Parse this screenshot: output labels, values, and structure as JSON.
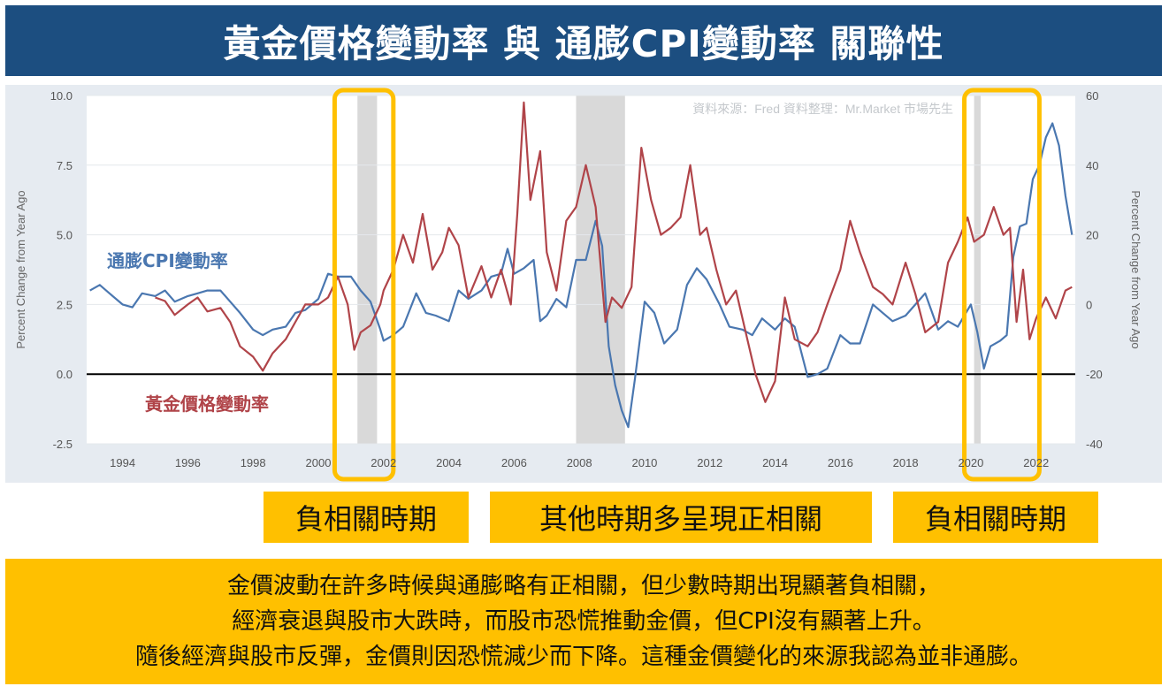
{
  "title": "黃金價格變動率 與 通膨CPI變動率 關聯性",
  "chart_data": {
    "type": "line",
    "source_note": "資料來源：Fred 資料整理：Mr.Market 市場先生",
    "ylabel_left": "Percent Change from Year Ago",
    "ylabel_right": "Percent Change from Year Ago",
    "xlim": [
      1992.9,
      2023.2
    ],
    "ylim_left": [
      -2.5,
      10.0
    ],
    "ylim_right": [
      -40,
      60
    ],
    "x_ticks": [
      "1994",
      "1996",
      "1998",
      "2000",
      "2002",
      "2004",
      "2006",
      "2008",
      "2010",
      "2012",
      "2014",
      "2016",
      "2018",
      "2020",
      "2022"
    ],
    "y_ticks_left": [
      "10.0",
      "7.5",
      "5.0",
      "2.5",
      "0.0",
      "-2.5"
    ],
    "y_ticks_right": [
      "60",
      "40",
      "20",
      "0",
      "-20",
      "-40"
    ],
    "recessions": [
      [
        2001.2,
        2001.8
      ],
      [
        2007.9,
        2009.4
      ],
      [
        2020.1,
        2020.3
      ]
    ],
    "highlight_boxes": [
      [
        2000.5,
        2002.3
      ],
      [
        2019.8,
        2022.1
      ]
    ],
    "series": [
      {
        "name": "通膨CPI變動率",
        "axis": "left",
        "color": "#4a77b0",
        "x": [
          1993.0,
          1993.3,
          1993.6,
          1994.0,
          1994.3,
          1994.6,
          1995.0,
          1995.3,
          1995.6,
          1996.0,
          1996.3,
          1996.6,
          1997.0,
          1997.3,
          1997.6,
          1998.0,
          1998.3,
          1998.6,
          1999.0,
          1999.3,
          1999.6,
          2000.0,
          2000.3,
          2000.6,
          2001.0,
          2001.3,
          2001.6,
          2001.9,
          2002.0,
          2002.3,
          2002.6,
          2003.0,
          2003.3,
          2003.6,
          2004.0,
          2004.3,
          2004.6,
          2005.0,
          2005.3,
          2005.6,
          2005.8,
          2006.0,
          2006.3,
          2006.6,
          2006.8,
          2007.0,
          2007.3,
          2007.6,
          2007.9,
          2008.2,
          2008.5,
          2008.7,
          2008.9,
          2009.1,
          2009.3,
          2009.5,
          2009.7,
          2010.0,
          2010.3,
          2010.6,
          2011.0,
          2011.3,
          2011.6,
          2011.9,
          2012.3,
          2012.6,
          2013.0,
          2013.3,
          2013.6,
          2014.0,
          2014.3,
          2014.6,
          2015.0,
          2015.3,
          2015.6,
          2016.0,
          2016.3,
          2016.6,
          2017.0,
          2017.3,
          2017.6,
          2018.0,
          2018.3,
          2018.6,
          2019.0,
          2019.3,
          2019.6,
          2020.0,
          2020.2,
          2020.4,
          2020.6,
          2020.9,
          2021.1,
          2021.3,
          2021.5,
          2021.7,
          2021.9,
          2022.1,
          2022.3,
          2022.5,
          2022.7,
          2022.9,
          2023.1
        ],
        "values": [
          3.0,
          3.2,
          2.9,
          2.5,
          2.4,
          2.9,
          2.8,
          3.0,
          2.6,
          2.8,
          2.9,
          3.0,
          3.0,
          2.6,
          2.2,
          1.6,
          1.4,
          1.6,
          1.7,
          2.2,
          2.3,
          2.7,
          3.6,
          3.5,
          3.5,
          3.0,
          2.6,
          1.6,
          1.2,
          1.4,
          1.7,
          2.9,
          2.2,
          2.1,
          1.9,
          3.0,
          2.7,
          3.0,
          3.5,
          3.6,
          4.5,
          3.6,
          3.8,
          4.1,
          1.9,
          2.1,
          2.7,
          2.4,
          4.1,
          4.1,
          5.5,
          4.6,
          1.0,
          -0.4,
          -1.3,
          -1.9,
          -0.2,
          2.6,
          2.2,
          1.1,
          1.6,
          3.2,
          3.8,
          3.4,
          2.5,
          1.7,
          1.6,
          1.4,
          2.0,
          1.6,
          2.0,
          1.7,
          -0.1,
          0.0,
          0.2,
          1.4,
          1.1,
          1.1,
          2.5,
          2.2,
          1.9,
          2.1,
          2.5,
          2.9,
          1.6,
          1.9,
          1.7,
          2.5,
          1.5,
          0.2,
          1.0,
          1.2,
          1.4,
          4.2,
          5.3,
          5.4,
          7.0,
          7.5,
          8.5,
          9.0,
          8.2,
          6.4,
          5.0
        ]
      },
      {
        "name": "黃金價格變動率",
        "axis": "right",
        "color": "#b04449",
        "x": [
          1995.0,
          1995.3,
          1995.6,
          1996.0,
          1996.3,
          1996.6,
          1997.0,
          1997.3,
          1997.6,
          1998.0,
          1998.3,
          1998.6,
          1999.0,
          1999.3,
          1999.6,
          2000.0,
          2000.3,
          2000.6,
          2000.9,
          2001.1,
          2001.3,
          2001.6,
          2001.9,
          2002.0,
          2002.3,
          2002.6,
          2002.9,
          2003.2,
          2003.5,
          2003.8,
          2004.0,
          2004.3,
          2004.6,
          2005.0,
          2005.3,
          2005.6,
          2005.9,
          2006.1,
          2006.3,
          2006.5,
          2006.8,
          2007.0,
          2007.3,
          2007.6,
          2007.9,
          2008.2,
          2008.5,
          2008.8,
          2009.0,
          2009.3,
          2009.6,
          2009.9,
          2010.2,
          2010.5,
          2010.8,
          2011.1,
          2011.4,
          2011.7,
          2011.9,
          2012.2,
          2012.5,
          2012.8,
          2013.1,
          2013.4,
          2013.7,
          2014.0,
          2014.3,
          2014.6,
          2015.0,
          2015.3,
          2015.6,
          2016.0,
          2016.3,
          2016.6,
          2017.0,
          2017.3,
          2017.6,
          2018.0,
          2018.3,
          2018.6,
          2019.0,
          2019.3,
          2019.6,
          2019.9,
          2020.1,
          2020.4,
          2020.7,
          2021.0,
          2021.2,
          2021.4,
          2021.6,
          2021.8,
          2022.0,
          2022.3,
          2022.6,
          2022.9,
          2023.1
        ],
        "values": [
          2.0,
          1.0,
          -3.0,
          0.0,
          2.0,
          -2.0,
          -1.0,
          -5.0,
          -12.0,
          -15.0,
          -19.0,
          -14.0,
          -10.0,
          -5.0,
          0.0,
          0.0,
          2.0,
          8.0,
          0.0,
          -13.0,
          -8.0,
          -6.0,
          0.0,
          4.0,
          10.0,
          20.0,
          12.0,
          26.0,
          10.0,
          15.0,
          22.0,
          17.0,
          2.0,
          11.0,
          2.0,
          10.0,
          0.0,
          26.0,
          58.0,
          30.0,
          44.0,
          15.0,
          4.0,
          24.0,
          28.0,
          40.0,
          28.0,
          -5.0,
          2.0,
          -1.0,
          5.0,
          45.0,
          30.0,
          20.0,
          22.0,
          25.0,
          40.0,
          20.0,
          22.0,
          10.0,
          0.0,
          4.0,
          -8.0,
          -20.0,
          -28.0,
          -22.0,
          2.0,
          -10.0,
          -12.0,
          -8.0,
          0.0,
          10.0,
          24.0,
          15.0,
          5.0,
          3.0,
          0.0,
          12.0,
          3.0,
          -8.0,
          -5.0,
          12.0,
          18.0,
          25.0,
          18.0,
          20.0,
          28.0,
          20.0,
          22.0,
          -5.0,
          10.0,
          -10.0,
          -4.0,
          2.0,
          -4.0,
          4.0,
          5.0
        ]
      }
    ]
  },
  "series_labels": {
    "cpi": "通膨CPI變動率",
    "gold": "黃金價格變動率"
  },
  "tags": {
    "left": "負相關時期",
    "middle": "其他時期多呈現正相關",
    "right": "負相關時期"
  },
  "notes": [
    "金價波動在許多時候與通膨略有正相關，但少數時期出現顯著負相關，",
    "經濟衰退與股市大跌時，而股市恐慌推動金價，但CPI沒有顯著上升。",
    "隨後經濟與股市反彈，金價則因恐慌減少而下降。這種金價變化的來源我認為並非通膨。"
  ],
  "colors": {
    "title_bg": "#1c4e80",
    "highlight": "#ffc000",
    "recession": "#d9d9d9",
    "zero_line": "#000000"
  }
}
